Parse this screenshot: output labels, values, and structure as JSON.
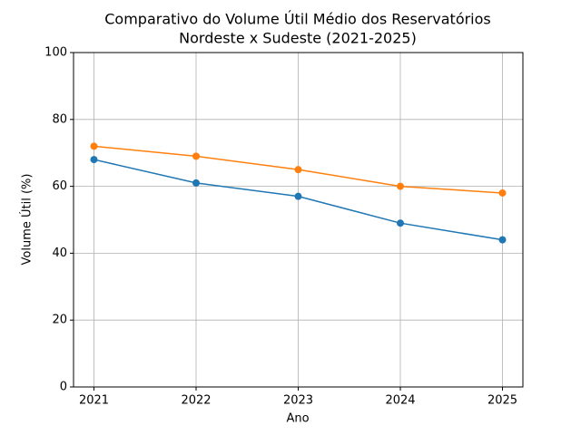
{
  "chart_data": {
    "type": "line",
    "title": [
      "Comparativo do Volume Útil Médio dos Reservatórios",
      "Nordeste x Sudeste (2021-2025)"
    ],
    "x_label": "Ano",
    "y_label": "Volume Útil (%)",
    "x": [
      2021,
      2022,
      2023,
      2024,
      2025
    ],
    "series": [
      {
        "color": "#1f77b4",
        "values": [
          68,
          61,
          57,
          49,
          44
        ]
      },
      {
        "color": "#ff7f0e",
        "values": [
          72,
          69,
          65,
          60,
          58
        ]
      }
    ],
    "xlim": [
      2020.8,
      2025.2
    ],
    "xticks": [
      2021,
      2022,
      2023,
      2024,
      2025
    ],
    "ylim": [
      0,
      100
    ],
    "yticks": [
      0,
      20,
      40,
      60,
      80,
      100
    ],
    "grid": true,
    "markers": true
  }
}
